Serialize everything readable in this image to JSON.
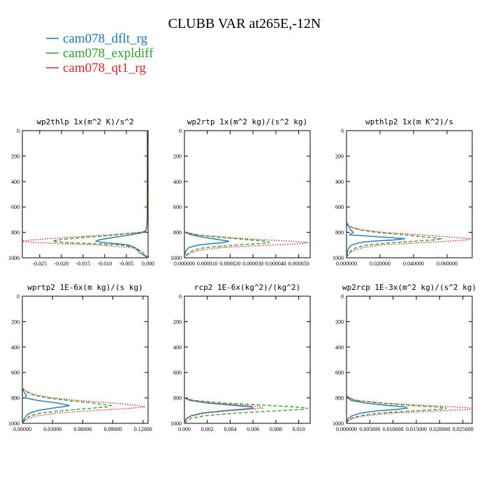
{
  "title": "CLUBB VAR at265E,-12N",
  "legend": [
    {
      "name": "cam078_dflt_rg",
      "color": "#1f77b4",
      "dash": "solid"
    },
    {
      "name": "cam078_expldiff",
      "color": "#2ca02c",
      "dash": "dashed"
    },
    {
      "name": "cam078_qt1_rg",
      "color": "#d62728",
      "dash": "dotted"
    }
  ],
  "chart_data": [
    {
      "type": "line",
      "title": "wp2thlp  1x(m^2 K)/s^2",
      "xlim": [
        -0.029,
        0.0
      ],
      "ylim": [
        1000,
        0
      ],
      "xticks": [
        -0.025,
        -0.02,
        -0.015,
        -0.01,
        -0.005,
        0.0
      ],
      "xticklabels": [
        "-0.025",
        "-0.020",
        "-0.015",
        "-0.010",
        "-0.005",
        "0.000"
      ],
      "yticks": [
        0,
        200,
        400,
        600,
        800,
        1000
      ],
      "yticklabels": [
        "0",
        "200",
        "400",
        "600",
        "800",
        "1000"
      ],
      "y": [
        0,
        100,
        300,
        500,
        700,
        760,
        790,
        800,
        820,
        840,
        860,
        870,
        880,
        890,
        900,
        920,
        940,
        960,
        980,
        1000
      ],
      "series": [
        {
          "name": "cam078_dflt_rg",
          "values": [
            -0.0002,
            -0.0002,
            -0.0002,
            -0.0002,
            -0.0002,
            -0.0003,
            -0.0005,
            -0.001,
            -0.004,
            -0.008,
            -0.0115,
            -0.012,
            -0.0105,
            -0.007,
            -0.0045,
            -0.003,
            -0.0025,
            -0.002,
            -0.001,
            0.0
          ]
        },
        {
          "name": "cam078_expldiff",
          "values": [
            -0.0002,
            -0.0002,
            -0.0002,
            -0.0002,
            -0.0002,
            -0.0003,
            -0.0006,
            -0.0015,
            -0.007,
            -0.015,
            -0.021,
            -0.022,
            -0.019,
            -0.012,
            -0.006,
            -0.003,
            -0.002,
            -0.0012,
            -0.0006,
            0.0
          ]
        },
        {
          "name": "cam078_qt1_rg",
          "values": [
            -0.0002,
            -0.0002,
            -0.0002,
            -0.0002,
            -0.0002,
            -0.0003,
            -0.0007,
            -0.002,
            -0.009,
            -0.019,
            -0.027,
            -0.029,
            -0.026,
            -0.019,
            -0.011,
            -0.004,
            -0.002,
            -0.0012,
            -0.0006,
            0.0
          ]
        }
      ]
    },
    {
      "type": "line",
      "title": "wp2rtp  1x(m^2 kg)/(s^2 kg)",
      "xlim": [
        0.0,
        5.5e-05
      ],
      "ylim": [
        1000,
        0
      ],
      "xticks": [
        0.0,
        1e-05,
        2e-05,
        3e-05,
        4e-05,
        5e-05
      ],
      "xticklabels": [
        "0.000000",
        "0.000010",
        "0.000020",
        "0.000030",
        "0.000040",
        "0.000050"
      ],
      "yticks": [
        0,
        200,
        400,
        600,
        800,
        1000
      ],
      "yticklabels": [
        "0",
        "200",
        "400",
        "600",
        "800",
        "1000"
      ],
      "y": [
        790,
        800,
        820,
        840,
        860,
        870,
        880,
        890,
        900,
        920,
        940,
        960,
        980,
        1000
      ],
      "series": [
        {
          "name": "cam078_dflt_rg",
          "values": [
            0.0,
            3e-07,
            3e-06,
            9e-06,
            1.6e-05,
            1.95e-05,
            1.7e-05,
            1.1e-05,
            6e-06,
            2e-06,
            8e-07,
            4e-07,
            1e-07,
            0.0
          ]
        },
        {
          "name": "cam078_expldiff",
          "values": [
            0.0,
            5e-07,
            5e-06,
            1.6e-05,
            2.9e-05,
            3.6e-05,
            3.7e-05,
            3.2e-05,
            2.2e-05,
            9e-06,
            4e-06,
            2e-06,
            8e-07,
            0.0
          ]
        },
        {
          "name": "cam078_qt1_rg",
          "values": [
            0.0,
            5e-07,
            6e-06,
            1.9e-05,
            3.6e-05,
            4.7e-05,
            5.4e-05,
            5e-05,
            3.8e-05,
            1.6e-05,
            7e-06,
            3e-06,
            1e-06,
            0.0
          ]
        }
      ]
    },
    {
      "type": "line",
      "title": "wpthlp2  1x(m K^2)/s",
      "xlim": [
        0.0,
        0.075
      ],
      "ylim": [
        1000,
        0
      ],
      "xticks": [
        0.0,
        0.02,
        0.04,
        0.06
      ],
      "xticklabels": [
        "0.000000",
        "0.020000",
        "0.040000",
        "0.060000"
      ],
      "yticks": [
        0,
        200,
        400,
        600,
        800,
        1000
      ],
      "yticklabels": [
        "0",
        "200",
        "400",
        "600",
        "800",
        "1000"
      ],
      "y": [
        720,
        740,
        760,
        780,
        800,
        820,
        840,
        850,
        860,
        870,
        880,
        900,
        920,
        940,
        960,
        980,
        1000
      ],
      "series": [
        {
          "name": "cam078_dflt_rg",
          "values": [
            0.0,
            0.0005,
            0.0015,
            0.0025,
            0.004,
            0.002,
            0.025,
            0.035,
            0.028,
            0.015,
            0.008,
            0.003,
            0.0015,
            0.0008,
            0.0004,
            0.0002,
            0.0
          ]
        },
        {
          "name": "cam078_expldiff",
          "values": [
            0.0,
            0.001,
            0.003,
            0.008,
            0.018,
            0.035,
            0.05,
            0.057,
            0.052,
            0.04,
            0.028,
            0.012,
            0.006,
            0.003,
            0.0015,
            0.0006,
            0.0
          ]
        },
        {
          "name": "cam078_qt1_rg",
          "values": [
            0.0,
            0.001,
            0.003,
            0.009,
            0.022,
            0.045,
            0.065,
            0.074,
            0.072,
            0.06,
            0.045,
            0.02,
            0.01,
            0.005,
            0.002,
            0.0008,
            0.0
          ]
        }
      ]
    },
    {
      "type": "line",
      "title": "wprtp2  1E-6x(m kg)/(s kg)",
      "xlim": [
        0.0,
        0.125
      ],
      "ylim": [
        1000,
        0
      ],
      "xticks": [
        0.0,
        0.03,
        0.06,
        0.09,
        0.12
      ],
      "xticklabels": [
        "0.00000",
        "0.03000",
        "0.06000",
        "0.09000",
        "0.12000"
      ],
      "yticks": [
        0,
        200,
        400,
        600,
        800,
        1000
      ],
      "yticklabels": [
        "0",
        "200",
        "400",
        "600",
        "800",
        "1000"
      ],
      "y": [
        720,
        740,
        760,
        780,
        800,
        820,
        840,
        860,
        870,
        880,
        900,
        920,
        940,
        960,
        980,
        1000
      ],
      "series": [
        {
          "name": "cam078_dflt_rg",
          "values": [
            0.0,
            0.001,
            0.002,
            0.004,
            0.003,
            0.015,
            0.035,
            0.047,
            0.04,
            0.03,
            0.015,
            0.007,
            0.004,
            0.002,
            0.001,
            0.0
          ]
        },
        {
          "name": "cam078_expldiff",
          "values": [
            0.0,
            0.002,
            0.006,
            0.012,
            0.025,
            0.045,
            0.07,
            0.088,
            0.085,
            0.07,
            0.04,
            0.018,
            0.008,
            0.004,
            0.002,
            0.0
          ]
        },
        {
          "name": "cam078_qt1_rg",
          "values": [
            0.0,
            0.002,
            0.007,
            0.015,
            0.03,
            0.055,
            0.09,
            0.115,
            0.122,
            0.11,
            0.07,
            0.035,
            0.015,
            0.006,
            0.002,
            0.0
          ]
        }
      ]
    },
    {
      "type": "line",
      "title": "rcp2  1E-6x(kg^2)/(kg^2)",
      "xlim": [
        0.0,
        0.011
      ],
      "ylim": [
        1000,
        0
      ],
      "xticks": [
        0.0,
        0.002,
        0.004,
        0.006,
        0.008,
        0.01
      ],
      "xticklabels": [
        "0.000",
        "0.002",
        "0.004",
        "0.006",
        "0.008",
        "0.010"
      ],
      "yticks": [
        0,
        200,
        400,
        600,
        800,
        1000
      ],
      "yticklabels": [
        "0",
        "200",
        "400",
        "600",
        "800",
        "1000"
      ],
      "y": [
        800,
        820,
        840,
        860,
        870,
        880,
        890,
        900,
        920,
        940,
        960,
        980,
        1000
      ],
      "series": [
        {
          "name": "cam078_dflt_rg",
          "values": [
            0.0,
            0.0005,
            0.002,
            0.0045,
            0.0058,
            0.006,
            0.005,
            0.0035,
            0.0015,
            0.0006,
            0.0002,
            5e-05,
            0.0
          ]
        },
        {
          "name": "cam078_expldiff",
          "values": [
            0.0,
            0.0008,
            0.0035,
            0.0075,
            0.0095,
            0.0108,
            0.0104,
            0.0085,
            0.0045,
            0.0018,
            0.0006,
            0.0002,
            0.0
          ]
        },
        {
          "name": "cam078_qt1_rg",
          "values": [
            0.0,
            0.0006,
            0.0025,
            0.0055,
            0.0067,
            0.0068,
            0.0058,
            0.004,
            0.0018,
            0.0007,
            0.0002,
            5e-05,
            0.0
          ]
        }
      ]
    },
    {
      "type": "line",
      "title": "wp2rcp  1E-3x(m^2 kg)/(s^2 kg)",
      "xlim": [
        0.0,
        0.027
      ],
      "ylim": [
        1000,
        0
      ],
      "xticks": [
        0.0,
        0.005,
        0.01,
        0.015,
        0.02,
        0.025
      ],
      "xticklabels": [
        "0.000000",
        "0.005000",
        "0.010000",
        "0.015000",
        "0.020000",
        "0.025000"
      ],
      "yticks": [
        0,
        200,
        400,
        600,
        800,
        1000
      ],
      "yticklabels": [
        "0",
        "200",
        "400",
        "600",
        "800",
        "1000"
      ],
      "y": [
        780,
        800,
        820,
        840,
        860,
        870,
        880,
        890,
        900,
        920,
        940,
        960,
        980,
        1000
      ],
      "series": [
        {
          "name": "cam078_dflt_rg",
          "values": [
            0.0,
            0.0003,
            0.001,
            0.004,
            0.009,
            0.0125,
            0.013,
            0.011,
            0.007,
            0.003,
            0.0012,
            0.0004,
            0.0001,
            0.0
          ]
        },
        {
          "name": "cam078_expldiff",
          "values": [
            0.0,
            0.0005,
            0.002,
            0.007,
            0.014,
            0.019,
            0.0215,
            0.02,
            0.015,
            0.007,
            0.003,
            0.001,
            0.0003,
            0.0
          ]
        },
        {
          "name": "cam078_qt1_rg",
          "values": [
            0.0,
            0.0005,
            0.0022,
            0.008,
            0.017,
            0.023,
            0.027,
            0.0265,
            0.021,
            0.01,
            0.004,
            0.0015,
            0.0004,
            0.0
          ]
        }
      ]
    }
  ]
}
